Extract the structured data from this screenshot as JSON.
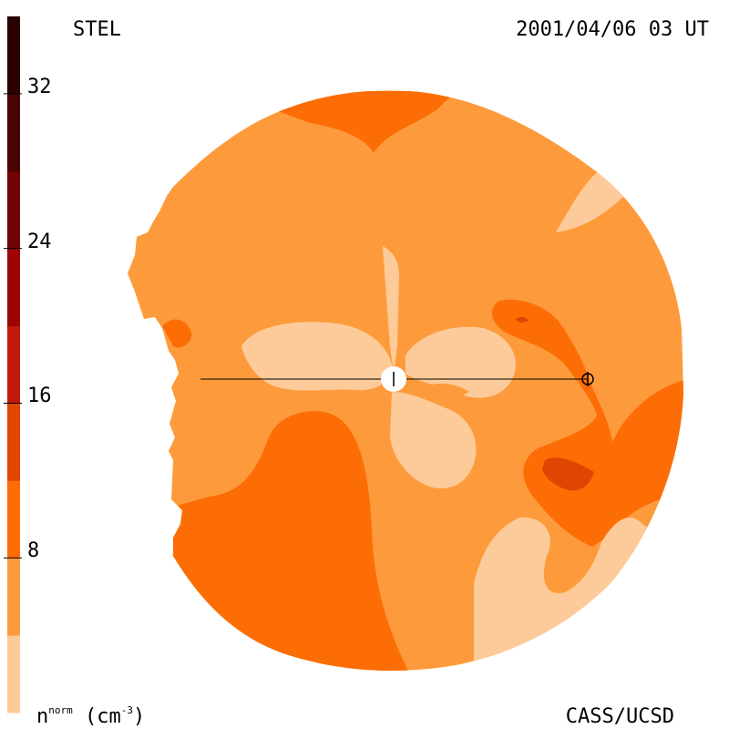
{
  "header": {
    "instrument": "STEL",
    "datetime": "2001/04/06 03 UT"
  },
  "footer": {
    "credit": "CASS/UCSD",
    "unit_base": "n",
    "unit_super": "norm",
    "unit_rest": " (cm",
    "unit_exp": "-3",
    "unit_close": ")"
  },
  "chart_data": {
    "type": "heatmap",
    "title": "STEL",
    "subtitle": "2001/04/06 03 UT",
    "colorbar": {
      "label": "n^norm (cm^-3)",
      "range": [
        0,
        36
      ],
      "ticks": [
        8,
        16,
        24,
        32
      ],
      "tick_labels": [
        "8",
        "16",
        "24",
        "32"
      ],
      "levels": [
        {
          "min": 0,
          "max": 4,
          "color": "#fdcb99"
        },
        {
          "min": 4,
          "max": 8,
          "color": "#fd9b3c"
        },
        {
          "min": 8,
          "max": 12,
          "color": "#fd6d06"
        },
        {
          "min": 12,
          "max": 16,
          "color": "#e14502"
        },
        {
          "min": 16,
          "max": 20,
          "color": "#c11a0a"
        },
        {
          "min": 20,
          "max": 24,
          "color": "#9d0404"
        },
        {
          "min": 24,
          "max": 28,
          "color": "#700404"
        },
        {
          "min": 28,
          "max": 32,
          "color": "#4a0303"
        },
        {
          "min": 32,
          "max": 36,
          "color": "#2a0202"
        }
      ]
    },
    "markers": [
      "sun",
      "earth"
    ]
  }
}
